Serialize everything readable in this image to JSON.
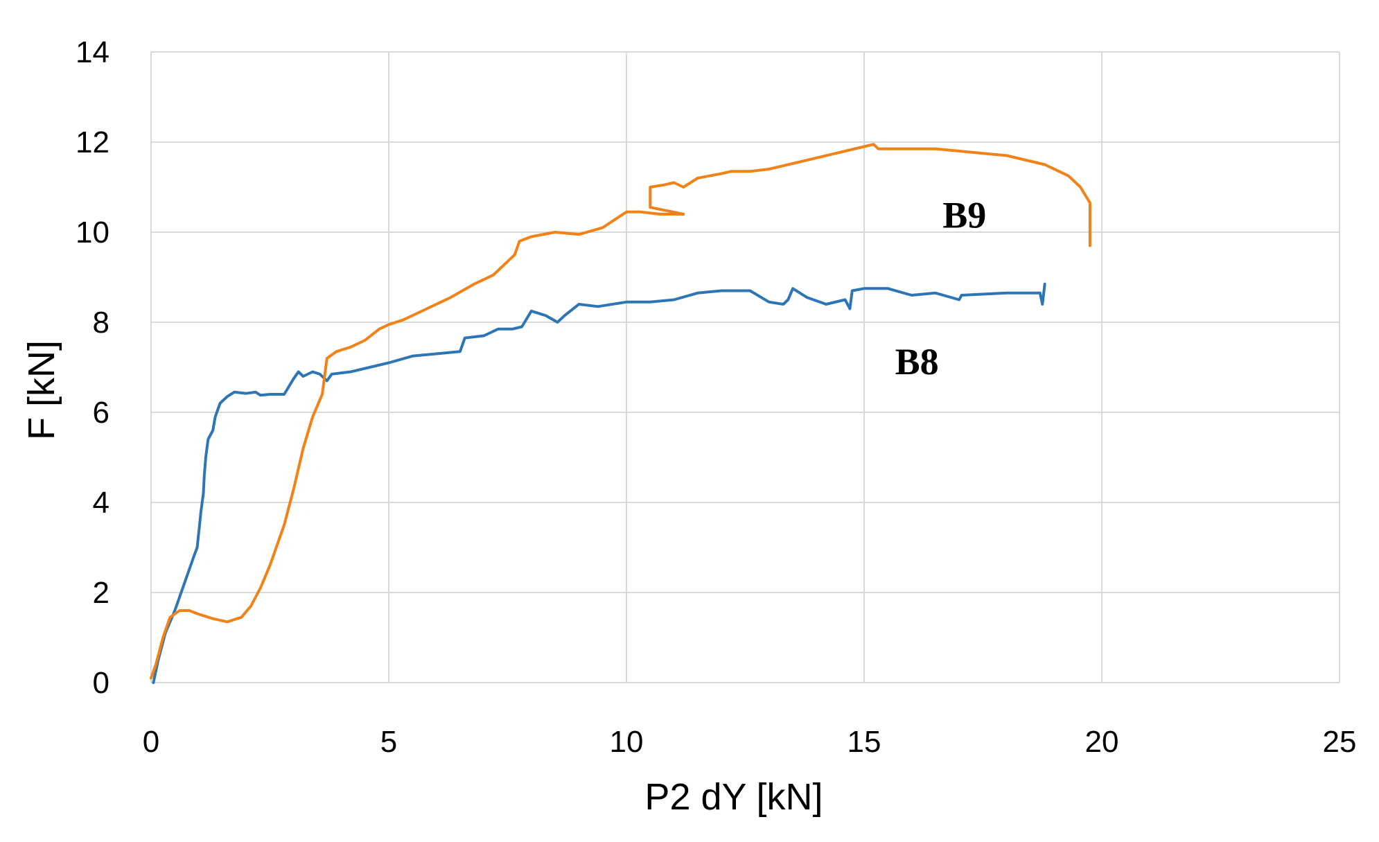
{
  "chart_data": {
    "type": "line",
    "title": "",
    "xlabel": "P2 dY [kN]",
    "ylabel": "F [kN]",
    "xlim": [
      0,
      25
    ],
    "ylim": [
      0,
      14
    ],
    "x_ticks": [
      "0",
      "5",
      "10",
      "15",
      "20",
      "25"
    ],
    "y_ticks": [
      "0",
      "2",
      "4",
      "6",
      "8",
      "10",
      "12",
      "14"
    ],
    "grid": true,
    "legend": "none",
    "series": [
      {
        "name": "B8",
        "color": "#2e75b6",
        "points": [
          [
            0.05,
            0.0
          ],
          [
            0.15,
            0.5
          ],
          [
            0.3,
            1.1
          ],
          [
            0.5,
            1.6
          ],
          [
            0.7,
            2.2
          ],
          [
            0.9,
            2.8
          ],
          [
            0.97,
            3.0
          ],
          [
            1.0,
            3.3
          ],
          [
            1.05,
            3.8
          ],
          [
            1.1,
            4.2
          ],
          [
            1.12,
            4.6
          ],
          [
            1.15,
            5.0
          ],
          [
            1.2,
            5.4
          ],
          [
            1.3,
            5.6
          ],
          [
            1.35,
            5.9
          ],
          [
            1.45,
            6.2
          ],
          [
            1.6,
            6.35
          ],
          [
            1.75,
            6.45
          ],
          [
            2.0,
            6.42
          ],
          [
            2.2,
            6.45
          ],
          [
            2.3,
            6.38
          ],
          [
            2.5,
            6.4
          ],
          [
            2.8,
            6.4
          ],
          [
            3.0,
            6.75
          ],
          [
            3.1,
            6.9
          ],
          [
            3.2,
            6.8
          ],
          [
            3.4,
            6.9
          ],
          [
            3.55,
            6.85
          ],
          [
            3.7,
            6.7
          ],
          [
            3.8,
            6.85
          ],
          [
            4.2,
            6.9
          ],
          [
            5.0,
            7.1
          ],
          [
            5.5,
            7.25
          ],
          [
            6.0,
            7.3
          ],
          [
            6.5,
            7.35
          ],
          [
            6.6,
            7.65
          ],
          [
            7.0,
            7.7
          ],
          [
            7.3,
            7.85
          ],
          [
            7.6,
            7.85
          ],
          [
            7.8,
            7.9
          ],
          [
            8.0,
            8.25
          ],
          [
            8.3,
            8.15
          ],
          [
            8.55,
            8.0
          ],
          [
            8.7,
            8.15
          ],
          [
            9.0,
            8.4
          ],
          [
            9.4,
            8.35
          ],
          [
            10.0,
            8.45
          ],
          [
            10.5,
            8.45
          ],
          [
            11.0,
            8.5
          ],
          [
            11.5,
            8.65
          ],
          [
            12.0,
            8.7
          ],
          [
            12.6,
            8.7
          ],
          [
            13.0,
            8.45
          ],
          [
            13.3,
            8.4
          ],
          [
            13.4,
            8.5
          ],
          [
            13.5,
            8.75
          ],
          [
            13.8,
            8.55
          ],
          [
            14.2,
            8.4
          ],
          [
            14.6,
            8.5
          ],
          [
            14.7,
            8.3
          ],
          [
            14.75,
            8.7
          ],
          [
            15.0,
            8.75
          ],
          [
            15.5,
            8.75
          ],
          [
            16.0,
            8.6
          ],
          [
            16.5,
            8.65
          ],
          [
            17.0,
            8.5
          ],
          [
            17.05,
            8.6
          ],
          [
            18.0,
            8.65
          ],
          [
            18.7,
            8.65
          ],
          [
            18.75,
            8.4
          ],
          [
            18.8,
            8.85
          ]
        ]
      },
      {
        "name": "B9",
        "color": "#f08218",
        "points": [
          [
            0.0,
            0.1
          ],
          [
            0.1,
            0.4
          ],
          [
            0.25,
            1.0
          ],
          [
            0.4,
            1.45
          ],
          [
            0.6,
            1.6
          ],
          [
            0.8,
            1.6
          ],
          [
            1.0,
            1.52
          ],
          [
            1.3,
            1.42
          ],
          [
            1.6,
            1.35
          ],
          [
            1.9,
            1.45
          ],
          [
            2.1,
            1.7
          ],
          [
            2.3,
            2.1
          ],
          [
            2.5,
            2.6
          ],
          [
            2.8,
            3.5
          ],
          [
            3.0,
            4.3
          ],
          [
            3.2,
            5.2
          ],
          [
            3.4,
            5.9
          ],
          [
            3.6,
            6.4
          ],
          [
            3.65,
            6.8
          ],
          [
            3.7,
            7.2
          ],
          [
            3.9,
            7.35
          ],
          [
            4.2,
            7.45
          ],
          [
            4.5,
            7.6
          ],
          [
            4.8,
            7.85
          ],
          [
            5.0,
            7.95
          ],
          [
            5.3,
            8.05
          ],
          [
            5.8,
            8.3
          ],
          [
            6.3,
            8.55
          ],
          [
            6.8,
            8.85
          ],
          [
            7.2,
            9.05
          ],
          [
            7.5,
            9.35
          ],
          [
            7.65,
            9.5
          ],
          [
            7.75,
            9.8
          ],
          [
            8.0,
            9.9
          ],
          [
            8.5,
            10.0
          ],
          [
            9.0,
            9.95
          ],
          [
            9.5,
            10.1
          ],
          [
            10.0,
            10.45
          ],
          [
            10.3,
            10.45
          ],
          [
            10.7,
            10.4
          ],
          [
            11.2,
            10.4
          ],
          [
            10.5,
            10.55
          ],
          [
            10.5,
            11.0
          ],
          [
            10.8,
            11.05
          ],
          [
            11.0,
            11.1
          ],
          [
            11.2,
            11.0
          ],
          [
            11.5,
            11.2
          ],
          [
            12.0,
            11.3
          ],
          [
            12.2,
            11.35
          ],
          [
            12.6,
            11.35
          ],
          [
            13.0,
            11.4
          ],
          [
            14.0,
            11.65
          ],
          [
            15.0,
            11.9
          ],
          [
            15.2,
            11.95
          ],
          [
            15.3,
            11.85
          ],
          [
            16.0,
            11.85
          ],
          [
            16.5,
            11.85
          ],
          [
            17.0,
            11.8
          ],
          [
            18.0,
            11.7
          ],
          [
            18.8,
            11.5
          ],
          [
            19.3,
            11.25
          ],
          [
            19.55,
            11.0
          ],
          [
            19.75,
            10.65
          ],
          [
            19.75,
            10.0
          ],
          [
            19.75,
            9.7
          ]
        ]
      }
    ],
    "annotations": [
      {
        "text": "B9",
        "x": 16.65,
        "y": 10.1
      },
      {
        "text": "B8",
        "x": 15.65,
        "y": 6.85
      }
    ]
  }
}
